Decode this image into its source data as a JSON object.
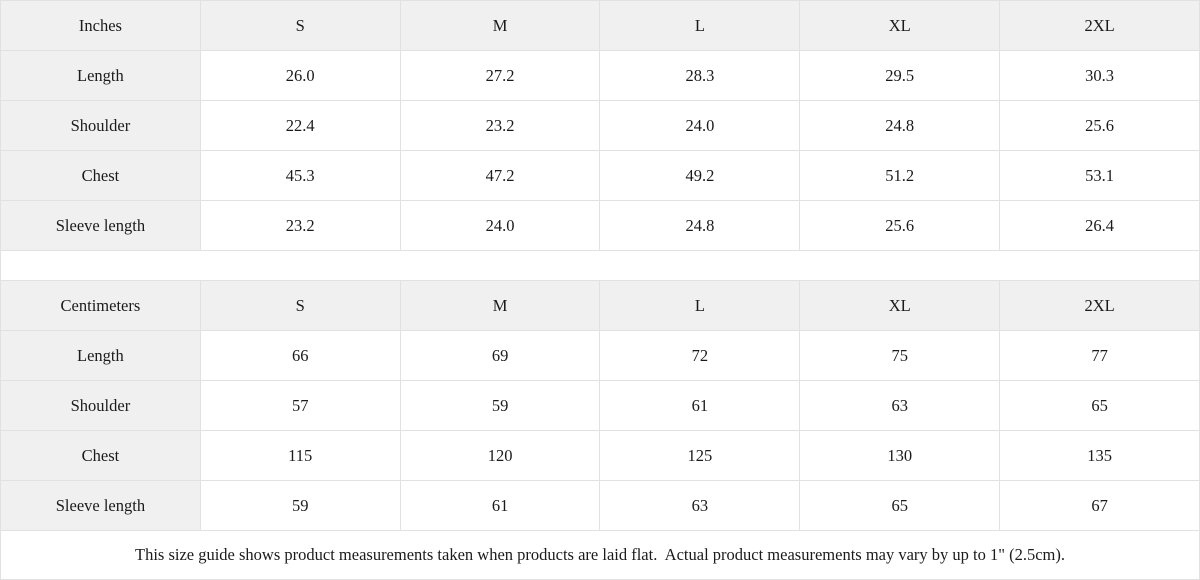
{
  "colors": {
    "header_cell_background": "#f0f0f0",
    "cell_background": "#ffffff",
    "border": "#e1e1e1",
    "text": "#1b1b1b"
  },
  "tables": [
    {
      "unit_label": "Inches",
      "sizes": [
        "S",
        "M",
        "L",
        "XL",
        "2XL"
      ],
      "rows": [
        {
          "label": "Length",
          "values": [
            "26.0",
            "27.2",
            "28.3",
            "29.5",
            "30.3"
          ]
        },
        {
          "label": "Shoulder",
          "values": [
            "22.4",
            "23.2",
            "24.0",
            "24.8",
            "25.6"
          ]
        },
        {
          "label": "Chest",
          "values": [
            "45.3",
            "47.2",
            "49.2",
            "51.2",
            "53.1"
          ]
        },
        {
          "label": "Sleeve length",
          "values": [
            "23.2",
            "24.0",
            "24.8",
            "25.6",
            "26.4"
          ]
        }
      ]
    },
    {
      "unit_label": "Centimeters",
      "sizes": [
        "S",
        "M",
        "L",
        "XL",
        "2XL"
      ],
      "rows": [
        {
          "label": "Length",
          "values": [
            "66",
            "69",
            "72",
            "75",
            "77"
          ]
        },
        {
          "label": "Shoulder",
          "values": [
            "57",
            "59",
            "61",
            "63",
            "65"
          ]
        },
        {
          "label": "Chest",
          "values": [
            "115",
            "120",
            "125",
            "130",
            "135"
          ]
        },
        {
          "label": "Sleeve length",
          "values": [
            "59",
            "61",
            "63",
            "65",
            "67"
          ]
        }
      ]
    }
  ],
  "note": "This size guide shows product measurements taken when products are laid flat.  Actual product measurements may vary by up to 1\" (2.5cm)."
}
